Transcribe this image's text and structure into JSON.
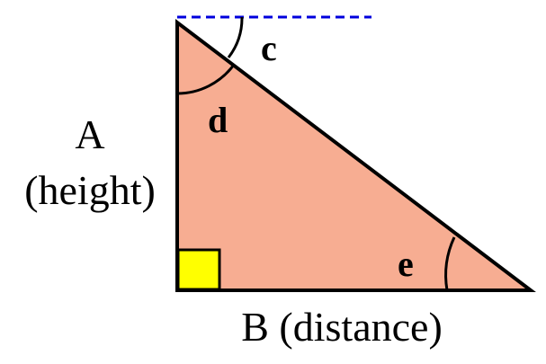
{
  "diagram": {
    "side_a_label": "A",
    "side_a_sublabel": "(height)",
    "side_b_label": "B (distance)",
    "angle_c_label": "c",
    "angle_d_label": "d",
    "angle_e_label": "e"
  },
  "colors": {
    "triangle_fill": "#f7ad92",
    "triangle_stroke": "#000000",
    "right_angle_fill": "#ffff00",
    "horizon_line": "#0000dd"
  }
}
